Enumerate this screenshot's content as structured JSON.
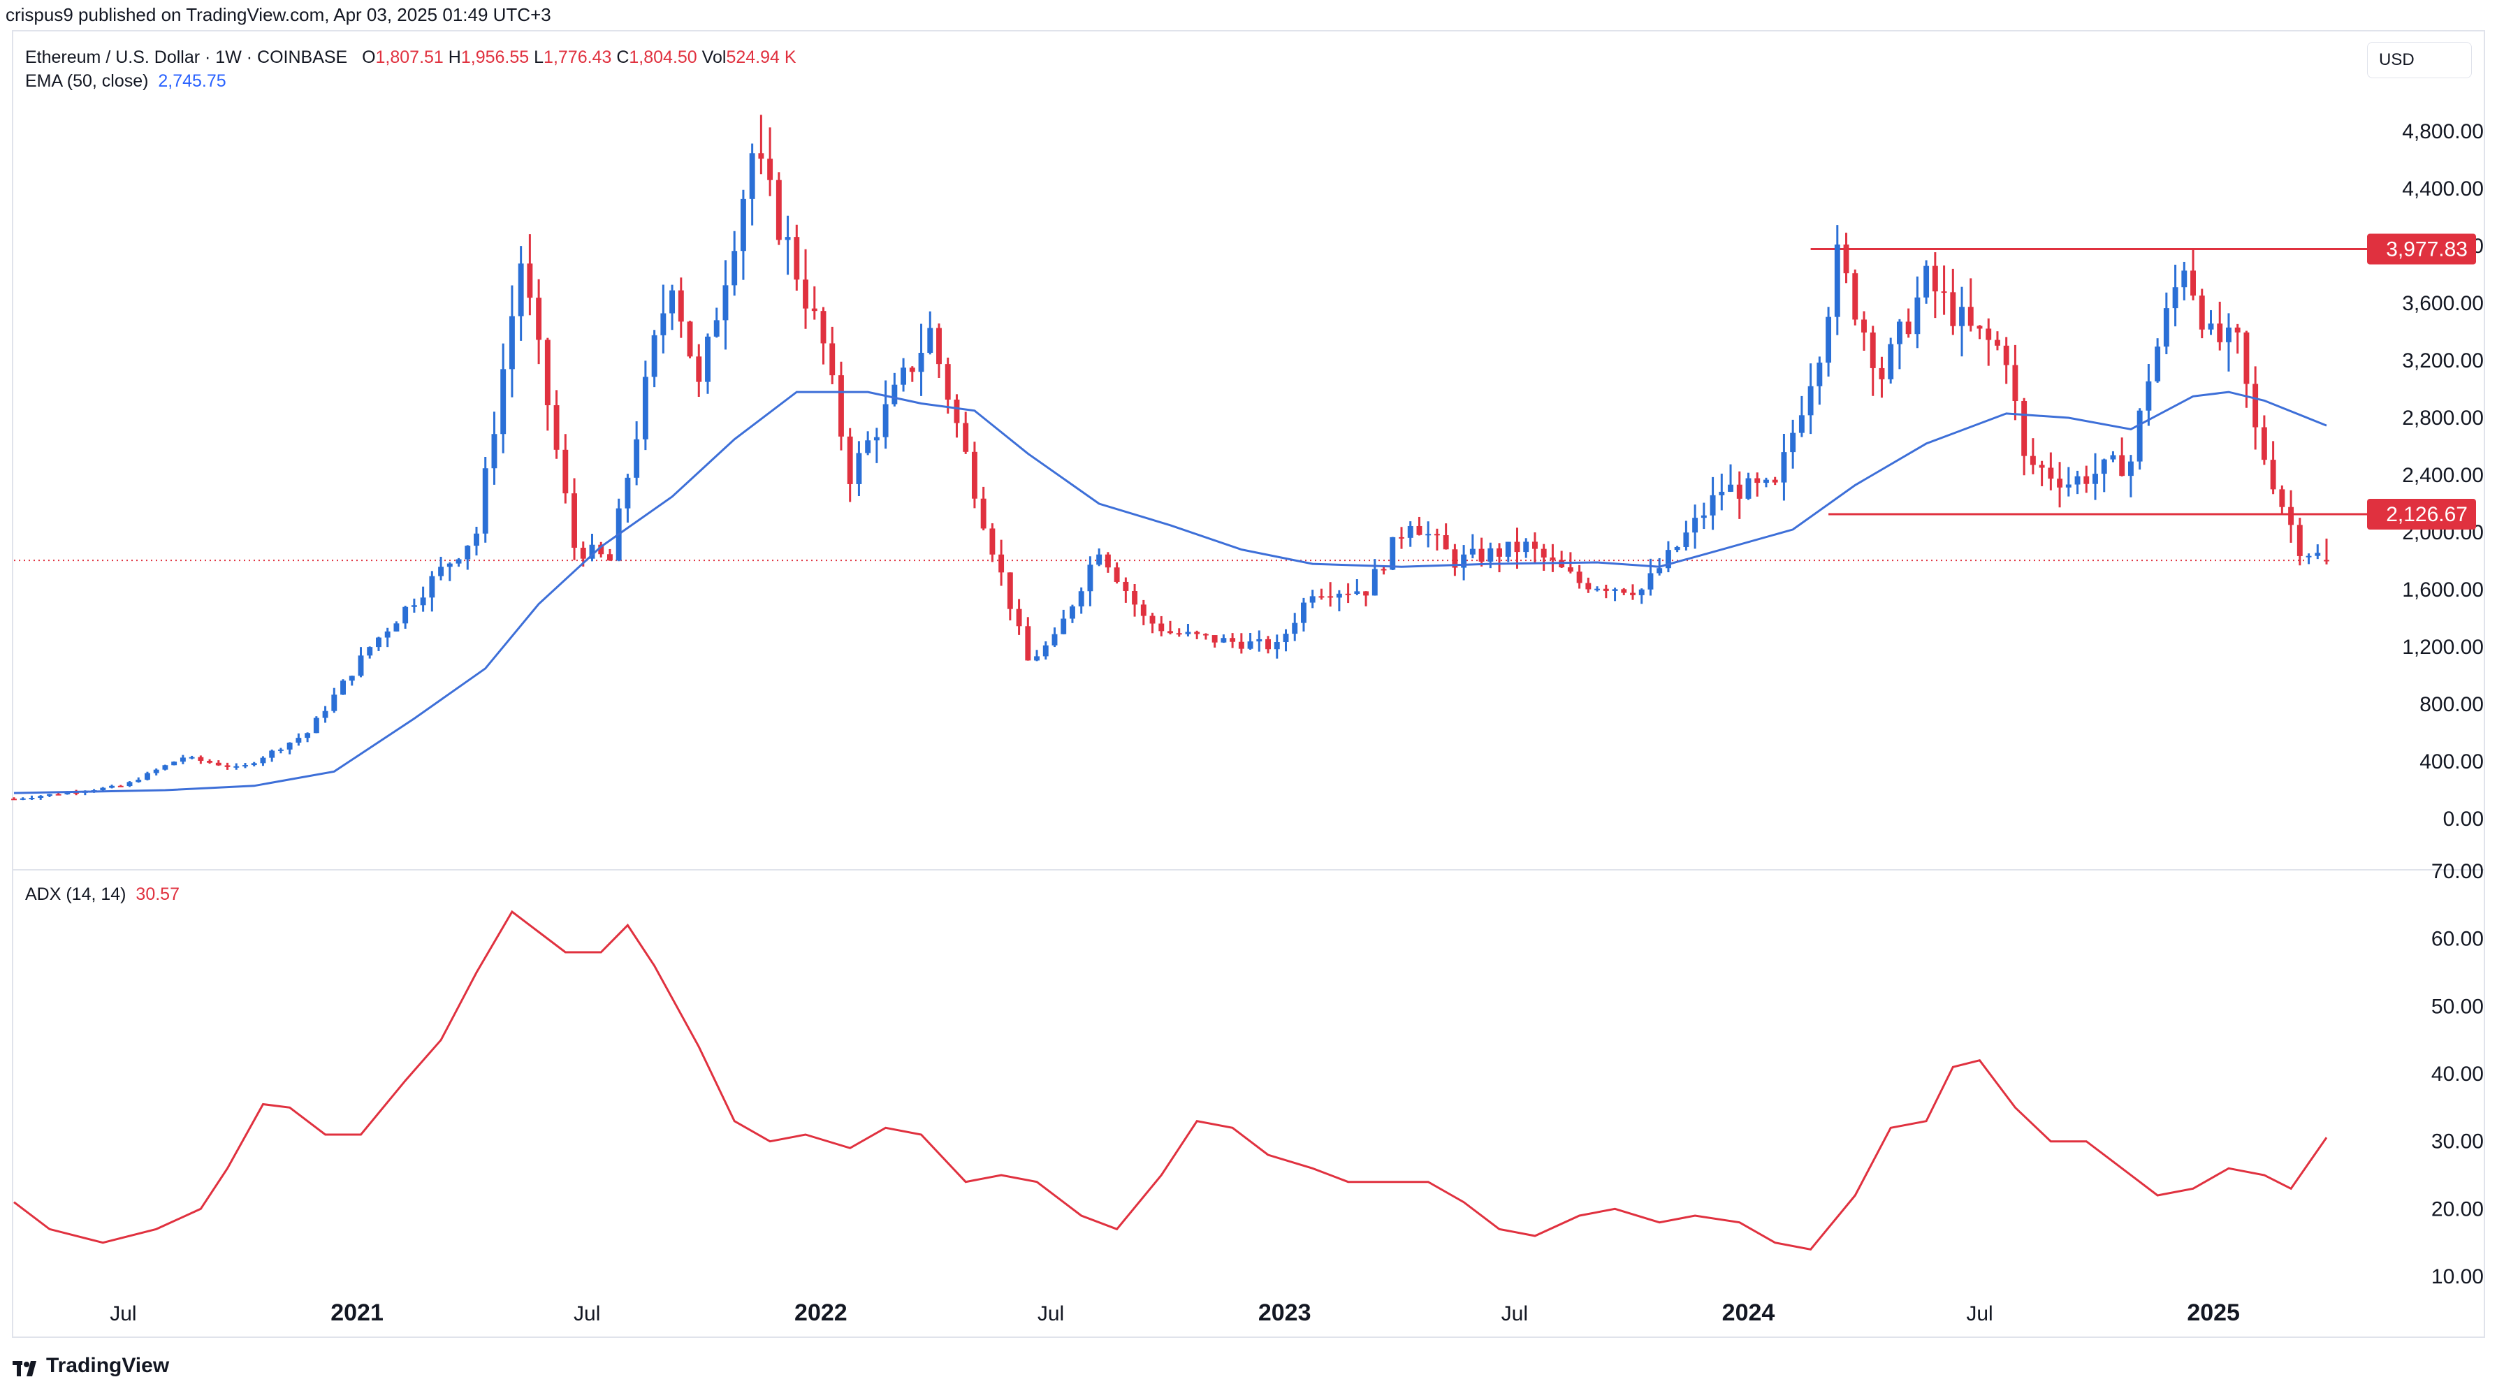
{
  "header": {
    "published": "crispus9 published on TradingView.com, Apr 03, 2025 01:49 UTC+3"
  },
  "legend": {
    "symbol": "Ethereum / U.S. Dollar · 1W · COINBASE",
    "open_label": "O",
    "open": "1,807.51",
    "high_label": "H",
    "high": "1,956.55",
    "low_label": "L",
    "low": "1,776.43",
    "close_label": "C",
    "close": "1,804.50",
    "vol_label": "Vol",
    "vol": "524.94 K",
    "ema_label": "EMA (50, close)",
    "ema_value": "2,745.75",
    "adx_label": "ADX (14, 14)",
    "adx_value": "30.57"
  },
  "currency": "USD",
  "footer": {
    "brand": "TradingView"
  },
  "colors": {
    "up": "#2a6fd6",
    "down": "#e0313f",
    "ema": "#3d6fd8",
    "adx": "#e0313f",
    "level_line": "#e0313f",
    "label_bg": "#e0313f"
  },
  "chart_data": [
    {
      "type": "candlestick",
      "title": "Ethereum / U.S. Dollar · 1W · COINBASE",
      "price_axis": {
        "ylim": [
          0,
          4800
        ],
        "ticks": [
          "4,800.00",
          "4,400.00",
          "4,000.00",
          "3,600.00",
          "3,200.00",
          "2,800.00",
          "2,400.00",
          "2,000.00",
          "1,600.00",
          "1,200.00",
          "800.00",
          "400.00",
          "0.00"
        ],
        "tick_values": [
          4800,
          4400,
          4000,
          3600,
          3200,
          2800,
          2400,
          2000,
          1600,
          1200,
          800,
          400,
          0
        ]
      },
      "time_axis": {
        "labels": [
          "Jul",
          "2021",
          "Jul",
          "2022",
          "Jul",
          "2023",
          "Jul",
          "2024",
          "Jul",
          "2025"
        ],
        "label_dates": [
          "2020-07-01",
          "2021-01-01",
          "2021-07-01",
          "2022-01-01",
          "2022-07-01",
          "2023-01-01",
          "2023-07-01",
          "2024-01-01",
          "2024-07-01",
          "2025-01-01"
        ],
        "range": [
          "2020-04-06",
          "2025-03-31"
        ]
      },
      "ohlc_anchors": [
        [
          "2020-04-06",
          140
        ],
        [
          "2020-07-01",
          230
        ],
        [
          "2020-08-17",
          430
        ],
        [
          "2020-10-01",
          350
        ],
        [
          "2020-11-23",
          600
        ],
        [
          "2021-01-11",
          1200
        ],
        [
          "2021-02-22",
          1600
        ],
        [
          "2021-04-05",
          2000
        ],
        [
          "2021-05-10",
          3900
        ],
        [
          "2021-06-21",
          1900
        ],
        [
          "2021-07-19",
          1800
        ],
        [
          "2021-08-23",
          3300
        ],
        [
          "2021-09-06",
          3800
        ],
        [
          "2021-09-27",
          3000
        ],
        [
          "2021-11-08",
          4650
        ],
        [
          "2021-12-06",
          4000
        ],
        [
          "2022-01-03",
          3300
        ],
        [
          "2022-01-24",
          2400
        ],
        [
          "2022-03-28",
          3400
        ],
        [
          "2022-05-09",
          2100
        ],
        [
          "2022-06-13",
          1100
        ],
        [
          "2022-07-04",
          1250
        ],
        [
          "2022-08-08",
          1900
        ],
        [
          "2022-09-12",
          1400
        ],
        [
          "2022-10-03",
          1300
        ],
        [
          "2022-11-07",
          1250
        ],
        [
          "2022-12-26",
          1200
        ],
        [
          "2023-01-23",
          1600
        ],
        [
          "2023-03-06",
          1600
        ],
        [
          "2023-04-10",
          2100
        ],
        [
          "2023-05-15",
          1800
        ],
        [
          "2023-07-10",
          1900
        ],
        [
          "2023-08-21",
          1650
        ],
        [
          "2023-10-09",
          1600
        ],
        [
          "2023-11-06",
          1900
        ],
        [
          "2023-12-11",
          2300
        ],
        [
          "2024-01-22",
          2300
        ],
        [
          "2024-02-26",
          3300
        ],
        [
          "2024-03-11",
          3900
        ],
        [
          "2024-04-15",
          3100
        ],
        [
          "2024-05-20",
          3750
        ],
        [
          "2024-06-24",
          3400
        ],
        [
          "2024-07-22",
          3250
        ],
        [
          "2024-08-05",
          2500
        ],
        [
          "2024-09-09",
          2350
        ],
        [
          "2024-10-28",
          2500
        ],
        [
          "2024-11-11",
          3100
        ],
        [
          "2024-12-09",
          3900
        ],
        [
          "2024-12-30",
          3350
        ],
        [
          "2025-01-20",
          3300
        ],
        [
          "2025-02-03",
          2700
        ],
        [
          "2025-02-24",
          2200
        ],
        [
          "2025-03-10",
          1900
        ],
        [
          "2025-03-31",
          1805
        ]
      ],
      "last_candle": {
        "open": 1807.51,
        "high": 1956.55,
        "low": 1776.43,
        "close": 1804.5
      },
      "levels": [
        {
          "label": "3,977.83",
          "value": 3977.83,
          "from": "2024-02-19"
        },
        {
          "label": "2,126.67",
          "value": 2126.67,
          "from": "2024-03-04"
        }
      ],
      "current_price": 1804.5
    },
    {
      "type": "line",
      "name": "EMA (50, close)",
      "last_value": 2745.75,
      "points": [
        [
          "2020-04-06",
          180
        ],
        [
          "2020-08-03",
          200
        ],
        [
          "2020-10-12",
          230
        ],
        [
          "2020-12-14",
          330
        ],
        [
          "2021-02-15",
          700
        ],
        [
          "2021-04-12",
          1050
        ],
        [
          "2021-05-24",
          1500
        ],
        [
          "2021-07-12",
          1900
        ],
        [
          "2021-09-06",
          2250
        ],
        [
          "2021-10-25",
          2650
        ],
        [
          "2021-12-13",
          2980
        ],
        [
          "2022-02-07",
          2980
        ],
        [
          "2022-03-21",
          2900
        ],
        [
          "2022-05-02",
          2850
        ],
        [
          "2022-06-13",
          2550
        ],
        [
          "2022-08-08",
          2200
        ],
        [
          "2022-10-03",
          2050
        ],
        [
          "2022-11-28",
          1880
        ],
        [
          "2023-01-23",
          1780
        ],
        [
          "2023-04-03",
          1760
        ],
        [
          "2023-06-12",
          1780
        ],
        [
          "2023-09-04",
          1790
        ],
        [
          "2023-10-23",
          1760
        ],
        [
          "2023-12-11",
          1880
        ],
        [
          "2024-02-05",
          2020
        ],
        [
          "2024-03-25",
          2330
        ],
        [
          "2024-05-20",
          2620
        ],
        [
          "2024-07-22",
          2830
        ],
        [
          "2024-09-09",
          2800
        ],
        [
          "2024-10-28",
          2720
        ],
        [
          "2024-12-16",
          2950
        ],
        [
          "2025-01-13",
          2980
        ],
        [
          "2025-02-10",
          2920
        ],
        [
          "2025-03-31",
          2745.75
        ]
      ]
    },
    {
      "type": "line",
      "name": "ADX (14, 14)",
      "last_value": 30.57,
      "y_axis": {
        "ylim": [
          10,
          70
        ],
        "ticks": [
          "70.00",
          "60.00",
          "50.00",
          "40.00",
          "30.00",
          "20.00",
          "10.00"
        ],
        "tick_values": [
          70,
          60,
          50,
          40,
          30,
          20,
          10
        ]
      },
      "points": [
        [
          "2020-04-06",
          21
        ],
        [
          "2020-05-04",
          17
        ],
        [
          "2020-06-15",
          15
        ],
        [
          "2020-07-27",
          17
        ],
        [
          "2020-08-31",
          20
        ],
        [
          "2020-09-21",
          26
        ],
        [
          "2020-10-19",
          35.5
        ],
        [
          "2020-11-09",
          35
        ],
        [
          "2020-12-07",
          31
        ],
        [
          "2021-01-04",
          31
        ],
        [
          "2021-02-08",
          39
        ],
        [
          "2021-03-08",
          45
        ],
        [
          "2021-04-05",
          55
        ],
        [
          "2021-05-03",
          64
        ],
        [
          "2021-05-24",
          61
        ],
        [
          "2021-06-14",
          58
        ],
        [
          "2021-07-12",
          58
        ],
        [
          "2021-08-02",
          62
        ],
        [
          "2021-08-23",
          56
        ],
        [
          "2021-09-27",
          44
        ],
        [
          "2021-10-25",
          33
        ],
        [
          "2021-11-22",
          30
        ],
        [
          "2021-12-20",
          31
        ],
        [
          "2022-01-24",
          29
        ],
        [
          "2022-02-21",
          32
        ],
        [
          "2022-03-21",
          31
        ],
        [
          "2022-04-25",
          24
        ],
        [
          "2022-05-23",
          25
        ],
        [
          "2022-06-20",
          24
        ],
        [
          "2022-07-25",
          19
        ],
        [
          "2022-08-22",
          17
        ],
        [
          "2022-09-26",
          25
        ],
        [
          "2022-10-24",
          33
        ],
        [
          "2022-11-21",
          32
        ],
        [
          "2022-12-19",
          28
        ],
        [
          "2023-01-23",
          26
        ],
        [
          "2023-02-20",
          24
        ],
        [
          "2023-03-20",
          24
        ],
        [
          "2023-04-24",
          24
        ],
        [
          "2023-05-22",
          21
        ],
        [
          "2023-06-19",
          17
        ],
        [
          "2023-07-17",
          16
        ],
        [
          "2023-08-21",
          19
        ],
        [
          "2023-09-18",
          20
        ],
        [
          "2023-10-23",
          18
        ],
        [
          "2023-11-20",
          19
        ],
        [
          "2023-12-25",
          18
        ],
        [
          "2024-01-22",
          15
        ],
        [
          "2024-02-19",
          14
        ],
        [
          "2024-03-25",
          22
        ],
        [
          "2024-04-22",
          32
        ],
        [
          "2024-05-20",
          33
        ],
        [
          "2024-06-10",
          41
        ],
        [
          "2024-07-01",
          42
        ],
        [
          "2024-07-29",
          35
        ],
        [
          "2024-08-26",
          30
        ],
        [
          "2024-09-23",
          30
        ],
        [
          "2024-10-21",
          26
        ],
        [
          "2024-11-18",
          22
        ],
        [
          "2024-12-16",
          23
        ],
        [
          "2025-01-13",
          26
        ],
        [
          "2025-02-10",
          25
        ],
        [
          "2025-03-03",
          23
        ],
        [
          "2025-03-31",
          30.57
        ]
      ]
    }
  ]
}
